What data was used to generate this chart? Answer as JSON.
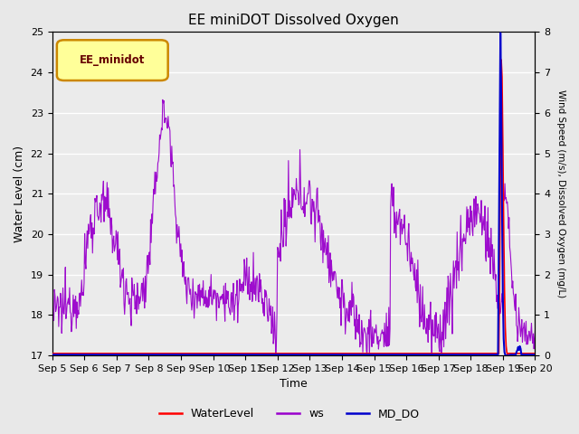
{
  "title": "EE miniDOT Dissolved Oxygen",
  "xlabel": "Time",
  "ylabel_left": "Water Level (cm)",
  "ylabel_right": "Wind Speed (m/s), Dissolved Oxygen (mg/L)",
  "legend_label": "EE_minidot",
  "ylim_left": [
    17.0,
    25.0
  ],
  "ylim_right": [
    0.0,
    8.0
  ],
  "yticks_left": [
    17.0,
    18.0,
    19.0,
    20.0,
    21.0,
    22.0,
    23.0,
    24.0,
    25.0
  ],
  "yticks_right": [
    0.0,
    1.0,
    2.0,
    3.0,
    4.0,
    5.0,
    6.0,
    7.0,
    8.0
  ],
  "n_days": 15,
  "xtick_labels": [
    "Sep 5",
    "Sep 6",
    "Sep 7",
    "Sep 8",
    "Sep 9",
    "Sep 10",
    "Sep 11",
    "Sep 12",
    "Sep 13",
    "Sep 14",
    "Sep 15",
    "Sep 16",
    "Sep 17",
    "Sep 18",
    "Sep 19",
    "Sep 20"
  ],
  "bg_color": "#e8e8e8",
  "plot_bg_color": "#ebebeb",
  "ws_color": "#9900cc",
  "wl_color": "#ff0000",
  "do_color": "#0000cc",
  "legend_box_edge_color": "#cc8800",
  "legend_box_fill": "#ffff99",
  "legend_text_color": "#660000"
}
